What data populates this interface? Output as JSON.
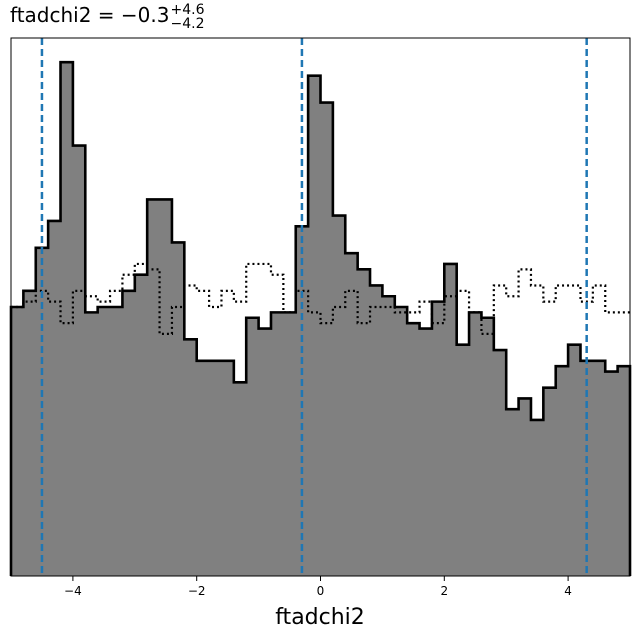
{
  "chart_data": {
    "type": "histogram",
    "title": {
      "prefix": "ftadchi2 = −0.3",
      "upper": "+4.6",
      "lower": "−4.2"
    },
    "xlabel": "ftadchi2",
    "ylabel": "",
    "xlim": [
      -5,
      5
    ],
    "ylim": [
      0,
      1
    ],
    "xticks": [
      -4,
      -2,
      0,
      2,
      4
    ],
    "xtick_labels": [
      "−4",
      "−2",
      "0",
      "2",
      "4"
    ],
    "yticks_shown": false,
    "grid": false,
    "bin_edges": [
      -5.0,
      -4.8,
      -4.6,
      -4.4,
      -4.2,
      -4.0,
      -3.8,
      -3.6,
      -3.4,
      -3.2,
      -3.0,
      -2.8,
      -2.6,
      -2.4,
      -2.2,
      -2.0,
      -1.8,
      -1.6,
      -1.4,
      -1.2,
      -1.0,
      -0.8,
      -0.6,
      -0.4,
      -0.2,
      0.0,
      0.2,
      0.4,
      0.6,
      0.8,
      1.0,
      1.2,
      1.4,
      1.6,
      1.8,
      2.0,
      2.2,
      2.4,
      2.6,
      2.8,
      3.0,
      3.2,
      3.4,
      3.6,
      3.8,
      4.0,
      4.2,
      4.4,
      4.6,
      4.8,
      5.0
    ],
    "series": [
      {
        "style": "filled-step",
        "fill": "#808080",
        "edge": "#000000",
        "values": [
          0.5,
          0.53,
          0.61,
          0.66,
          0.955,
          0.8,
          0.49,
          0.5,
          0.5,
          0.53,
          0.56,
          0.7,
          0.7,
          0.62,
          0.44,
          0.4,
          0.4,
          0.4,
          0.36,
          0.48,
          0.46,
          0.49,
          0.49,
          0.65,
          0.93,
          0.88,
          0.67,
          0.6,
          0.57,
          0.54,
          0.52,
          0.5,
          0.47,
          0.46,
          0.51,
          0.58,
          0.43,
          0.49,
          0.48,
          0.42,
          0.31,
          0.33,
          0.29,
          0.35,
          0.39,
          0.43,
          0.4,
          0.4,
          0.38,
          0.39
        ]
      },
      {
        "style": "dotted-step",
        "edge": "#000000",
        "values": [
          0.5,
          0.51,
          0.53,
          0.51,
          0.47,
          0.53,
          0.52,
          0.51,
          0.53,
          0.56,
          0.58,
          0.57,
          0.45,
          0.5,
          0.54,
          0.53,
          0.5,
          0.53,
          0.51,
          0.58,
          0.58,
          0.56,
          0.49,
          0.53,
          0.49,
          0.47,
          0.5,
          0.53,
          0.47,
          0.5,
          0.5,
          0.49,
          0.49,
          0.51,
          0.47,
          0.52,
          0.53,
          0.49,
          0.45,
          0.54,
          0.52,
          0.57,
          0.54,
          0.51,
          0.54,
          0.54,
          0.51,
          0.54,
          0.49,
          0.49
        ]
      }
    ],
    "vlines": {
      "color": "#1f77b4",
      "style": "dashed",
      "x": [
        -4.5,
        -0.3,
        4.3
      ]
    }
  }
}
